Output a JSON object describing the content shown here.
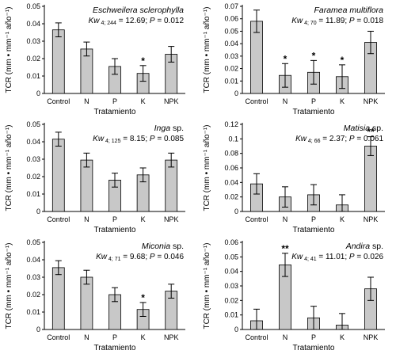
{
  "chart_data": [
    {
      "type": "bar",
      "title_italic": "Eschweilera sclerophylla",
      "title_rest": "",
      "stat_kw": "Kw",
      "stat_df": "4; 244",
      "stat_val": " = 12.69; ",
      "stat_p": "P",
      "stat_pval": " = 0.012",
      "xlabel": "Tratamiento",
      "ylabel": "TCR (mm • mm⁻¹ año⁻¹)",
      "categories": [
        "Control",
        "N",
        "P",
        "K",
        "NPK"
      ],
      "values": [
        0.0365,
        0.0255,
        0.0155,
        0.0115,
        0.0225
      ],
      "errors": [
        0.004,
        0.004,
        0.0045,
        0.0045,
        0.0045
      ],
      "significance": [
        "",
        "",
        "",
        "*",
        ""
      ],
      "ylim": [
        0,
        0.05
      ],
      "yticks": [
        "0",
        "0.01",
        "0.02",
        "0.03",
        "0.04",
        "0.05"
      ],
      "grid": false
    },
    {
      "type": "bar",
      "title_italic": "Faramea multiflora",
      "title_rest": "",
      "stat_kw": "Kw",
      "stat_df": "4; 70",
      "stat_val": " = 11.89; ",
      "stat_p": "P",
      "stat_pval": " = 0.018",
      "xlabel": "Tratamiento",
      "ylabel": "TCR (mm • mm⁻¹ año⁻¹)",
      "categories": [
        "Control",
        "N",
        "P",
        "K",
        "NPK"
      ],
      "values": [
        0.058,
        0.0145,
        0.017,
        0.0135,
        0.041
      ],
      "errors": [
        0.009,
        0.0095,
        0.0095,
        0.0095,
        0.009
      ],
      "significance": [
        "",
        "*",
        "*",
        "*",
        ""
      ],
      "ylim": [
        0,
        0.07
      ],
      "yticks": [
        "0",
        "0.01",
        "0.02",
        "0.03",
        "0.04",
        "0.05",
        "0.06",
        "0.07"
      ],
      "grid": false
    },
    {
      "type": "bar",
      "title_italic": "Inga",
      "title_rest": " sp.",
      "stat_kw": "Kw",
      "stat_df": "4; 125",
      "stat_val": " = 8.15; ",
      "stat_p": "P",
      "stat_pval": " = 0.085",
      "xlabel": "Tratamiento",
      "ylabel": "TCR (mm • mm⁻¹ año⁻¹)",
      "categories": [
        "Control",
        "N",
        "P",
        "K",
        "NPK"
      ],
      "values": [
        0.0415,
        0.0295,
        0.018,
        0.021,
        0.0295
      ],
      "errors": [
        0.004,
        0.004,
        0.004,
        0.004,
        0.004
      ],
      "significance": [
        "",
        "",
        "",
        "",
        ""
      ],
      "ylim": [
        0,
        0.05
      ],
      "yticks": [
        "0",
        "0.01",
        "0.02",
        "0.03",
        "0.04",
        "0.05"
      ],
      "grid": false
    },
    {
      "type": "bar",
      "title_italic": "Matisia",
      "title_rest": " sp.",
      "stat_kw": "Kw",
      "stat_df": "4; 66",
      "stat_val": " = 2.37; ",
      "stat_p": "P",
      "stat_pval": " = 0.061",
      "xlabel": "Tratamiento",
      "ylabel": "TCR (mm • mm⁻¹ año⁻¹)",
      "categories": [
        "Control",
        "N",
        "P",
        "K",
        "NPK"
      ],
      "values": [
        0.038,
        0.02,
        0.023,
        0.009,
        0.09
      ],
      "errors": [
        0.014,
        0.014,
        0.014,
        0.014,
        0.013
      ],
      "significance": [
        "",
        "",
        "",
        "",
        "**"
      ],
      "ylim": [
        0,
        0.12
      ],
      "yticks": [
        "0",
        "0.02",
        "0.04",
        "0.06",
        "0.08",
        "0.1",
        "0.12"
      ],
      "grid": false
    },
    {
      "type": "bar",
      "title_italic": "Miconia",
      "title_rest": " sp.",
      "stat_kw": "Kw",
      "stat_df": "4; 71",
      "stat_val": " = 9.68; ",
      "stat_p": "P",
      "stat_pval": " = 0.046",
      "xlabel": "Tratamiento",
      "ylabel": "TCR (mm • mm⁻¹ año⁻¹)",
      "categories": [
        "Control",
        "N",
        "P",
        "K",
        "NPK"
      ],
      "values": [
        0.0355,
        0.03,
        0.02,
        0.0115,
        0.022
      ],
      "errors": [
        0.004,
        0.004,
        0.004,
        0.004,
        0.004
      ],
      "significance": [
        "",
        "",
        "",
        "*",
        ""
      ],
      "ylim": [
        0,
        0.05
      ],
      "yticks": [
        "0",
        "0.01",
        "0.02",
        "0.03",
        "0.04",
        "0.05"
      ],
      "grid": false
    },
    {
      "type": "bar",
      "title_italic": "Andira",
      "title_rest": " sp.",
      "stat_kw": "Kw",
      "stat_df": "4; 41",
      "stat_val": " = 11.01; ",
      "stat_p": "P",
      "stat_pval": " = 0.026",
      "xlabel": "Tratamiento",
      "ylabel": "TCR (mm • mm⁻¹ año⁻¹)",
      "categories": [
        "Control",
        "N",
        "P",
        "K",
        "NPK"
      ],
      "values": [
        0.006,
        0.0445,
        0.008,
        0.003,
        0.028
      ],
      "errors": [
        0.008,
        0.008,
        0.008,
        0.008,
        0.008
      ],
      "significance": [
        "",
        "**",
        "",
        "",
        ""
      ],
      "ylim": [
        0,
        0.06
      ],
      "yticks": [
        "0",
        "0.01",
        "0.02",
        "0.03",
        "0.04",
        "0.05",
        "0.06"
      ],
      "grid": false
    }
  ],
  "style": {
    "bar_fill": "#c8c8c8",
    "bar_stroke": "#000000",
    "axis_color": "#000000"
  }
}
